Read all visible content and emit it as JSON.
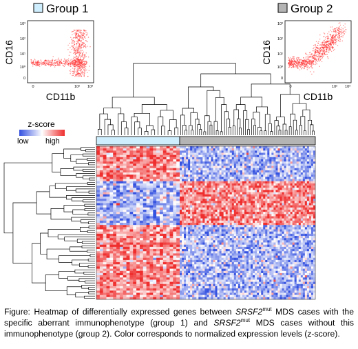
{
  "groups": [
    {
      "label": "Group 1",
      "color": "#cfeefd"
    },
    {
      "label": "Group 2",
      "color": "#b4b4b4"
    }
  ],
  "scatter": {
    "xlabel": "CD11b",
    "ylabel": "CD16",
    "x_ticks": [
      "0",
      "10²",
      "10³"
    ],
    "y_ticks": [
      "10³",
      "10²",
      "10¹",
      "10⁰",
      "0"
    ],
    "dot_color": "#ff2020"
  },
  "legend": {
    "title": "z-score",
    "low": "low",
    "high": "high",
    "colors": [
      "#3552e0",
      "#ffffff",
      "#ef2e2e"
    ]
  },
  "heatmap": {
    "n_cols_group1": 25,
    "n_cols_group2": 65,
    "n_rows": 70,
    "row_clusters": [
      {
        "rows": 16,
        "group1": "high",
        "group2": "low"
      },
      {
        "rows": 20,
        "group1": "low",
        "group2": "high"
      },
      {
        "rows": 34,
        "group1": "high",
        "group2": "low"
      }
    ]
  },
  "caption": {
    "p1": "Figure: Heatmap of differentially expressed genes between ",
    "gene1": "SRSF2",
    "sup1": "mut",
    "p2": " MDS cases with the specific aberrant immunophenotype (group 1) and ",
    "gene2": "SRSF2",
    "sup2": "mut",
    "p3": " MDS cases without this immunophenotype (group 2). Color corresponds to normalized expression levels (z-score)."
  }
}
